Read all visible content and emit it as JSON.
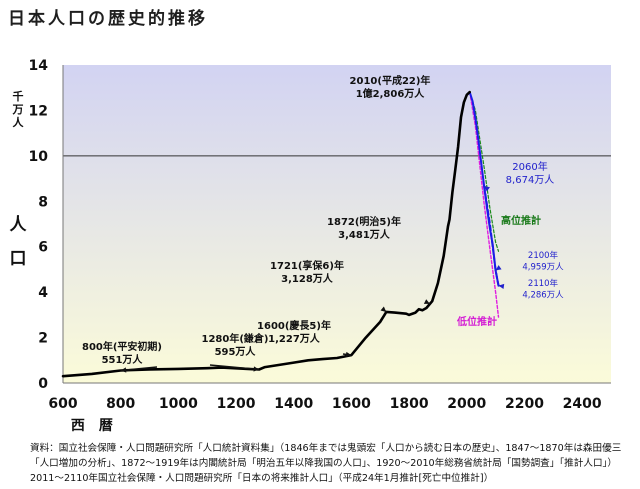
{
  "title": "日本人口の歴史的推移",
  "source_note": "資料：国立社会保障・人口問題研究所「人口統計資料集」（1846年までは鬼頭宏「人口から読む日本の歴史」、1847～1870年は森田優三「人口増加の分析」、1872～1919年は内閣統計局「明治五年以降我国の人口」、1920～2010年総務省統計局「国勢調査」「推計人口」）2011～2110年国立社会保障・人口問題研究所「日本の将来推計人口」（平成24年1月推計[死亡中位推計]）",
  "colors": {
    "plot_bg_top": "#d2d3f2",
    "plot_bg_bottom": "#fbfbd9",
    "actual": "#000000",
    "medium": "#1c1ce6",
    "high": "#1a8a1a",
    "low": "#e01ee0",
    "annotation_blue": "#2222cc",
    "annotation_green": "#1a7a1a",
    "annotation_magenta": "#d41ed4"
  },
  "chart_data": {
    "type": "line",
    "title": "日本人口の歴史的推移",
    "xlabel": "西　暦",
    "ylabel": "人　口",
    "yunit": "千万人",
    "xlim": [
      600,
      2500
    ],
    "ylim": [
      0,
      14
    ],
    "x_ticks": [
      "600",
      "800",
      "1000",
      "1200",
      "1400",
      "1600",
      "1800",
      "2000",
      "2200",
      "2400"
    ],
    "y_ticks": [
      "0",
      "2",
      "4",
      "6",
      "8",
      "10",
      "12",
      "14"
    ],
    "reference_line_y": 10,
    "series": [
      {
        "name": "actual",
        "style": "solid",
        "points": [
          [
            600,
            0.3
          ],
          [
            700,
            0.4
          ],
          [
            800,
            0.551
          ],
          [
            900,
            0.6
          ],
          [
            1000,
            0.62
          ],
          [
            1100,
            0.65
          ],
          [
            1150,
            0.68
          ],
          [
            1280,
            0.595
          ],
          [
            1300,
            0.7
          ],
          [
            1400,
            0.9
          ],
          [
            1450,
            1.0
          ],
          [
            1500,
            1.05
          ],
          [
            1550,
            1.1
          ],
          [
            1600,
            1.227
          ],
          [
            1650,
            2.0
          ],
          [
            1700,
            2.7
          ],
          [
            1721,
            3.128
          ],
          [
            1750,
            3.1
          ],
          [
            1790,
            3.05
          ],
          [
            1800,
            3.0
          ],
          [
            1822,
            3.1
          ],
          [
            1834,
            3.25
          ],
          [
            1846,
            3.2
          ],
          [
            1860,
            3.3
          ],
          [
            1872,
            3.481
          ],
          [
            1880,
            3.6
          ],
          [
            1900,
            4.4
          ],
          [
            1920,
            5.6
          ],
          [
            1935,
            6.9
          ],
          [
            1940,
            7.2
          ],
          [
            1950,
            8.4
          ],
          [
            1960,
            9.4
          ],
          [
            1970,
            10.4
          ],
          [
            1980,
            11.7
          ],
          [
            1990,
            12.36
          ],
          [
            2000,
            12.69
          ],
          [
            2010,
            12.806
          ]
        ]
      },
      {
        "name": "medium",
        "style": "solid",
        "points": [
          [
            2010,
            12.806
          ],
          [
            2020,
            12.4
          ],
          [
            2030,
            11.66
          ],
          [
            2040,
            10.73
          ],
          [
            2050,
            9.7
          ],
          [
            2060,
            8.674
          ],
          [
            2070,
            7.7
          ],
          [
            2080,
            6.8
          ],
          [
            2090,
            6.1
          ],
          [
            2100,
            4.959
          ],
          [
            2110,
            4.286
          ]
        ]
      },
      {
        "name": "high",
        "style": "dashed",
        "points": [
          [
            2010,
            12.806
          ],
          [
            2030,
            12.0
          ],
          [
            2060,
            9.5
          ],
          [
            2080,
            7.7
          ],
          [
            2100,
            6.2
          ],
          [
            2110,
            5.8
          ]
        ]
      },
      {
        "name": "low",
        "style": "dashed",
        "points": [
          [
            2010,
            12.806
          ],
          [
            2030,
            11.3
          ],
          [
            2060,
            7.9
          ],
          [
            2080,
            5.9
          ],
          [
            2100,
            4.0
          ],
          [
            2110,
            2.9
          ]
        ]
      },
      {
        "name": "medium-tail",
        "style": "dashed",
        "points": [
          [
            2060,
            8.674
          ],
          [
            2080,
            7.0
          ],
          [
            2100,
            4.959
          ],
          [
            2110,
            4.286
          ]
        ]
      }
    ],
    "annotations": [
      {
        "id": "a800",
        "lines": [
          "800年(平安初期)",
          "551万人"
        ],
        "target": [
          800,
          0.551
        ]
      },
      {
        "id": "a1280",
        "lines": [
          "1280年(鎌倉)",
          "595万人"
        ],
        "target": [
          1280,
          0.595
        ]
      },
      {
        "id": "a1600",
        "lines": [
          "1600(慶長5)年",
          "1,227万人"
        ],
        "target": [
          1600,
          1.227
        ]
      },
      {
        "id": "a1721",
        "lines": [
          "1721(享保6)年",
          "3,128万人"
        ],
        "target": [
          1721,
          3.128
        ]
      },
      {
        "id": "a1872",
        "lines": [
          "1872(明治5)年",
          "3,481万人"
        ],
        "target": [
          1872,
          3.481
        ]
      },
      {
        "id": "a2010",
        "lines": [
          "2010(平成22)年",
          "1億2,806万人"
        ],
        "target": [
          2010,
          12.806
        ]
      },
      {
        "id": "a2060",
        "lines": [
          "2060年",
          "8,674万人"
        ],
        "target": [
          2060,
          8.674
        ]
      },
      {
        "id": "a2100",
        "lines": [
          "2100年",
          "4,959万人"
        ],
        "target": [
          2100,
          4.959
        ]
      },
      {
        "id": "a2110",
        "lines": [
          "2110年",
          "4,286万人"
        ],
        "target": [
          2110,
          4.286
        ]
      },
      {
        "id": "high",
        "lines": [
          "高位推計"
        ],
        "target": [
          2085,
          7.1
        ]
      },
      {
        "id": "low",
        "lines": [
          "低位推計"
        ],
        "target": [
          2100,
          3.1
        ]
      }
    ]
  }
}
